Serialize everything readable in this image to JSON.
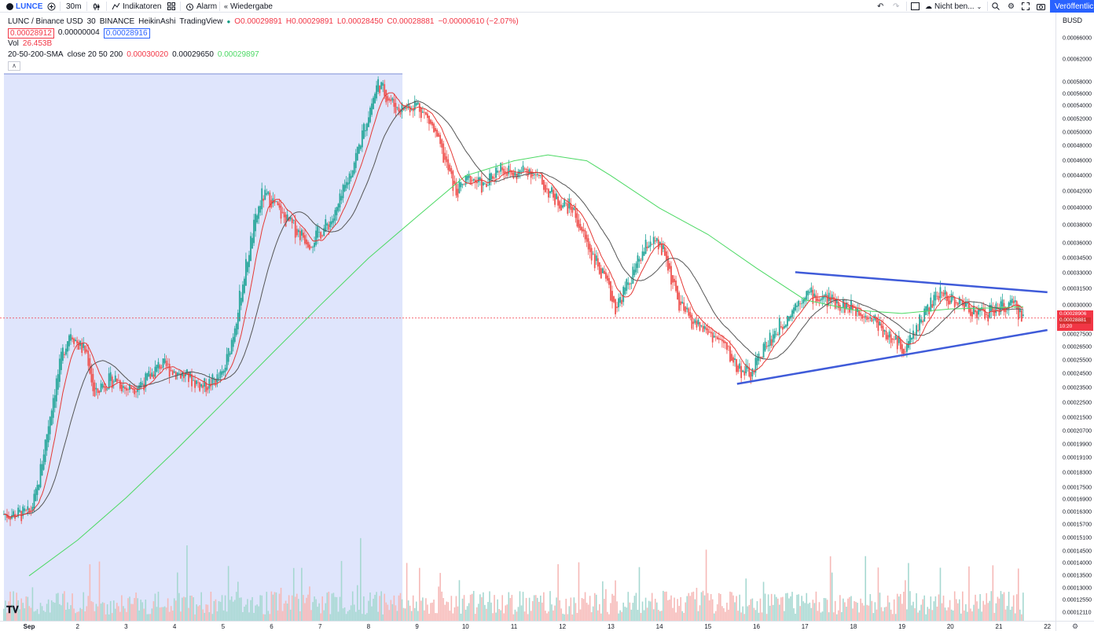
{
  "toolbar": {
    "symbol": "LUNCE",
    "add_symbol_icon": "plus-circle-icon",
    "interval": "30m",
    "chart_style_icon": "candles-icon",
    "indicators_label": "Indikatoren",
    "templates_icon": "templates-icon",
    "alert_label": "Alarm",
    "replay_label": "Wiedergabe",
    "undo_icon": "undo-icon",
    "redo_icon": "redo-icon",
    "layout_icon": "layout-icon",
    "save_label": "Nicht ben...",
    "search_icon": "search-icon",
    "settings_icon": "gear-icon",
    "fullscreen_icon": "fullscreen-icon",
    "snapshot_icon": "camera-icon",
    "publish_label": "Veröffentlic"
  },
  "legend": {
    "title": "LUNC / Binance USD",
    "interval": "30",
    "exchange": "BINANCE",
    "style": "HeikinAshi",
    "provider": "TradingView",
    "o": "O0.00029891",
    "h": "H0.00029891",
    "l": "L0.00028450",
    "c": "C0.00028881",
    "change": "−0.00000610 (−2.07%)",
    "bid": "0.00028912",
    "spread": "0.00000004",
    "ask": "0.00028916",
    "vol_label": "Vol",
    "vol_value": "26.453B",
    "sma_label": "20-50-200-SMA",
    "sma_params": "close 20 50 200",
    "sma20": "0.00030020",
    "sma50": "0.00029650",
    "sma200": "0.00029897"
  },
  "price_axis": {
    "unit": "BUSD",
    "ticks": [
      "0.00066000",
      "0.00062000",
      "0.00058000",
      "0.00056000",
      "0.00054000",
      "0.00052000",
      "0.00050000",
      "0.00048000",
      "0.00046000",
      "0.00044000",
      "0.00042000",
      "0.00040000",
      "0.00038000",
      "0.00036000",
      "0.00034500",
      "0.00033000",
      "0.00031500",
      "0.00030000",
      "0.00027500",
      "0.00026500",
      "0.00025500",
      "0.00024500",
      "0.00023500",
      "0.00022500",
      "0.00021500",
      "0.00020700",
      "0.00019900",
      "0.00019100",
      "0.00018300",
      "0.00017500",
      "0.00016900",
      "0.00016300",
      "0.00015700",
      "0.00015100",
      "0.00014500",
      "0.00014000",
      "0.00013500",
      "0.00013000",
      "0.00012550",
      "0.00012110"
    ],
    "price_tag": "0.00028906",
    "price_tag2": "0.00028881",
    "countdown": "10:20"
  },
  "time_axis": {
    "labels": [
      "Sep",
      "2",
      "3",
      "4",
      "5",
      "6",
      "7",
      "8",
      "9",
      "10",
      "11",
      "12",
      "13",
      "14",
      "15",
      "16",
      "17",
      "18",
      "19",
      "20",
      "21",
      "22"
    ]
  },
  "colors": {
    "up": "#26a69a",
    "down": "#ef5350",
    "sma20": "#e53935",
    "sma50": "#555555",
    "sma200": "#4cd964",
    "trendline": "#3f5bd9",
    "highlight": "#d9e1fb",
    "accent": "#2962ff"
  },
  "chart_data": {
    "type": "candlestick",
    "style": "HeikinAshi",
    "pair": "LUNC / Binance USD",
    "x_unit": "day of September",
    "x_range": [
      1,
      22
    ],
    "y_range": [
      0.00012,
      0.00066
    ],
    "y_scale": "log",
    "price_path": [
      [
        1.0,
        0.000162
      ],
      [
        1.15,
        0.000172
      ],
      [
        1.3,
        0.000195
      ],
      [
        1.5,
        0.00023
      ],
      [
        1.7,
        0.000262
      ],
      [
        1.85,
        0.000279
      ],
      [
        2.0,
        0.000268
      ],
      [
        2.2,
        0.00026
      ],
      [
        2.35,
        0.000228
      ],
      [
        2.5,
        0.000238
      ],
      [
        2.8,
        0.000242
      ],
      [
        3.0,
        0.000234
      ],
      [
        3.4,
        0.00024
      ],
      [
        3.7,
        0.000252
      ],
      [
        4.0,
        0.000247
      ],
      [
        4.3,
        0.000242
      ],
      [
        4.6,
        0.000236
      ],
      [
        5.0,
        0.000244
      ],
      [
        5.2,
        0.000275
      ],
      [
        5.4,
        0.00032
      ],
      [
        5.6,
        0.00037
      ],
      [
        5.8,
        0.000415
      ],
      [
        6.0,
        0.00041
      ],
      [
        6.2,
        0.000392
      ],
      [
        6.5,
        0.000375
      ],
      [
        6.8,
        0.000362
      ],
      [
        7.1,
        0.000378
      ],
      [
        7.3,
        0.00039
      ],
      [
        7.6,
        0.00044
      ],
      [
        7.8,
        0.00048
      ],
      [
        8.0,
        0.00053
      ],
      [
        8.2,
        0.00058
      ],
      [
        8.35,
        0.00056
      ],
      [
        8.6,
        0.000535
      ],
      [
        9.0,
        0.000545
      ],
      [
        9.3,
        0.00051
      ],
      [
        9.6,
        0.000455
      ],
      [
        9.8,
        0.000418
      ],
      [
        10.1,
        0.000438
      ],
      [
        10.4,
        0.000424
      ],
      [
        10.7,
        0.000455
      ],
      [
        11.0,
        0.00044
      ],
      [
        11.3,
        0.00045
      ],
      [
        11.6,
        0.000428
      ],
      [
        11.9,
        0.000408
      ],
      [
        12.2,
        0.0004
      ],
      [
        12.5,
        0.00036
      ],
      [
        12.8,
        0.00033
      ],
      [
        13.1,
        0.000298
      ],
      [
        13.4,
        0.000325
      ],
      [
        13.8,
        0.000365
      ],
      [
        14.1,
        0.00035
      ],
      [
        14.4,
        0.0003
      ],
      [
        14.7,
        0.000285
      ],
      [
        15.0,
        0.000278
      ],
      [
        15.3,
        0.000268
      ],
      [
        15.6,
        0.00025
      ],
      [
        15.9,
        0.000244
      ],
      [
        16.1,
        0.000262
      ],
      [
        16.4,
        0.000278
      ],
      [
        16.7,
        0.000295
      ],
      [
        17.0,
        0.000312
      ],
      [
        17.3,
        0.000306
      ],
      [
        17.6,
        0.000305
      ],
      [
        17.9,
        0.000298
      ],
      [
        18.2,
        0.000295
      ],
      [
        18.5,
        0.000285
      ],
      [
        18.8,
        0.00027
      ],
      [
        19.1,
        0.000265
      ],
      [
        19.4,
        0.00029
      ],
      [
        19.8,
        0.000312
      ],
      [
        20.1,
        0.000304
      ],
      [
        20.4,
        0.000298
      ],
      [
        20.7,
        0.000292
      ],
      [
        21.0,
        0.000298
      ],
      [
        21.3,
        0.0003
      ],
      [
        21.5,
        0.000289
      ]
    ],
    "sma_200": [
      [
        1.0,
        0.000135
      ],
      [
        2.0,
        0.00015
      ],
      [
        3.0,
        0.00017
      ],
      [
        4.0,
        0.000195
      ],
      [
        5.0,
        0.000225
      ],
      [
        6.0,
        0.00026
      ],
      [
        7.0,
        0.0003
      ],
      [
        8.0,
        0.000345
      ],
      [
        9.0,
        0.00039
      ],
      [
        10.0,
        0.00044
      ],
      [
        11.0,
        0.00046
      ],
      [
        11.7,
        0.000468
      ],
      [
        12.5,
        0.00046
      ],
      [
        13.0,
        0.00044
      ],
      [
        14.0,
        0.0004
      ],
      [
        15.0,
        0.00037
      ],
      [
        16.0,
        0.000335
      ],
      [
        17.0,
        0.000305
      ],
      [
        18.0,
        0.000296
      ],
      [
        19.0,
        0.000293
      ],
      [
        20.0,
        0.000297
      ],
      [
        21.0,
        0.000298
      ],
      [
        21.5,
        0.000299
      ]
    ],
    "trendlines": [
      {
        "name": "upper",
        "from": [
          16.8,
          0.000331
        ],
        "to": [
          22.0,
          0.000312
        ]
      },
      {
        "name": "lower",
        "from": [
          15.6,
          0.000238
        ],
        "to": [
          22.0,
          0.000279
        ]
      }
    ],
    "highlight_range": [
      1.0,
      8.7
    ],
    "current_price": 0.00028906
  }
}
